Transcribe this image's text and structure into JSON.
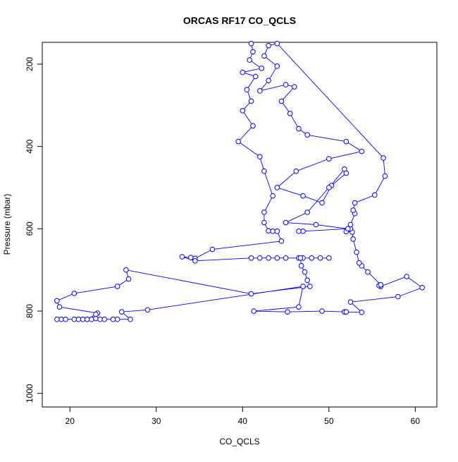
{
  "chart_data": {
    "type": "line",
    "title": "ORCAS RF17 CO_QCLS",
    "x_label": "CO_QCLS",
    "y_label": "Pressure (mbar)",
    "xlim": [
      16.8,
      62.5
    ],
    "ylim": [
      1033,
      147
    ],
    "xticks": [
      20,
      30,
      40,
      50,
      60
    ],
    "yticks": [
      200,
      400,
      600,
      800,
      1000
    ],
    "series": [
      {
        "color": "#0000ff",
        "x": [
          41,
          41.2,
          40.8,
          42.2,
          40,
          41.5,
          40.5,
          41,
          40,
          41.2,
          39.5,
          42,
          42.5,
          43.5,
          42.5,
          42.5,
          43,
          43.5,
          44,
          44.5,
          36.5,
          34.5,
          34,
          33,
          34.5,
          41,
          42,
          43,
          44,
          45,
          46.5,
          47,
          48,
          49,
          50,
          46.7,
          46.8,
          47.2,
          47.5,
          47.8,
          41,
          26.5,
          26.8,
          25.5,
          20.5,
          18.5,
          18.8,
          23.2,
          23,
          22,
          19,
          18.5,
          19.5,
          20.5,
          21,
          21.5,
          22,
          22.5,
          23,
          23.5,
          24,
          25,
          25.5,
          27,
          26,
          29,
          47,
          46.5,
          41.3,
          45.2,
          49.2,
          51.8,
          52,
          53.8,
          52.5,
          58,
          60.8,
          59,
          56,
          55.8,
          56,
          54.5,
          53.8,
          53.5,
          53.2,
          52.8,
          52.7,
          52,
          52.5,
          52.5,
          53,
          52.8,
          53,
          55.3,
          56.5,
          56.3,
          44,
          43,
          42.5,
          44,
          43,
          42,
          45,
          46,
          44.5,
          45.5,
          46.5,
          47.5,
          52,
          53.8,
          50,
          46.2,
          44,
          47,
          49.2,
          50.3,
          52,
          51.8,
          50,
          47.5,
          45,
          48.5,
          52.2,
          47,
          46.5
        ],
        "values": [
          150,
          170,
          190,
          210,
          220,
          230,
          262,
          290,
          313,
          350,
          388,
          425,
          460,
          520,
          560,
          585,
          605,
          606,
          606,
          630,
          650,
          672,
          670,
          668,
          678,
          671,
          671,
          671,
          671,
          671,
          671,
          671,
          671,
          671,
          671,
          671,
          690,
          705,
          725,
          740,
          758,
          700,
          722,
          740,
          757,
          775,
          790,
          805,
          808,
          820,
          820,
          820,
          820,
          820,
          820,
          820,
          820,
          820,
          818,
          820,
          820,
          820,
          820,
          820,
          802,
          797,
          740,
          790,
          800,
          802,
          800,
          802,
          802,
          803,
          778,
          765,
          743,
          716,
          740,
          738,
          736,
          705,
          690,
          683,
          657,
          625,
          608,
          607,
          600,
          590,
          563,
          555,
          537,
          518,
          472,
          428,
          150,
          155,
          180,
          205,
          240,
          265,
          250,
          255,
          290,
          320,
          357,
          372,
          388,
          412,
          430,
          460,
          500,
          520,
          537,
          495,
          465,
          455,
          500,
          560,
          585,
          590,
          600,
          606,
          606
        ]
      }
    ]
  }
}
